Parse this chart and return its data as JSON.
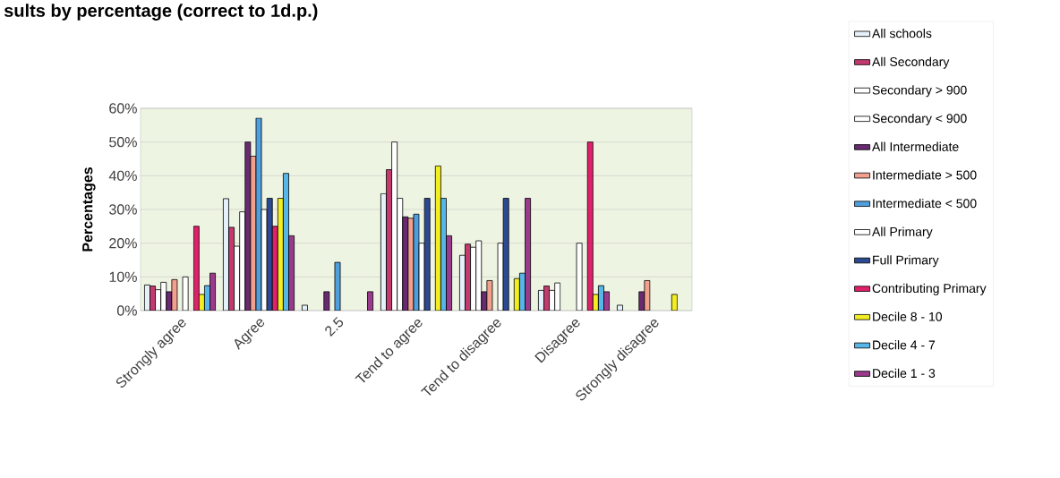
{
  "chart_data": {
    "type": "bar",
    "title": "sults by percentage (correct to 1d.p.)",
    "ylabel": "Percentages",
    "categories": [
      "Strongly agree",
      "Agree",
      "2.5",
      "Tend to agree",
      "Tend to disagree",
      "Disagree",
      "Strongly disagree"
    ],
    "ylim": [
      0,
      60
    ],
    "yticks": [
      {
        "value": 0,
        "label": "0%"
      },
      {
        "value": 10,
        "label": "10%"
      },
      {
        "value": 20,
        "label": "20%"
      },
      {
        "value": 30,
        "label": "30%"
      },
      {
        "value": 40,
        "label": "40%"
      },
      {
        "value": 50,
        "label": "50%"
      },
      {
        "value": 60,
        "label": "60%"
      }
    ],
    "grid": "y",
    "legend": "right",
    "series": [
      {
        "name": "All schools",
        "color": "#e4f0fa",
        "values": [
          7.6,
          33.2,
          1.6,
          34.7,
          16.4,
          6.0,
          1.6
        ]
      },
      {
        "name": "All Secondary",
        "color": "#c23a6e",
        "values": [
          7.3,
          24.7,
          0,
          41.8,
          19.7,
          7.3,
          0
        ]
      },
      {
        "name": "Secondary > 900",
        "color": "#ffffff",
        "values": [
          6.2,
          19.1,
          0,
          50.0,
          18.8,
          6.0,
          0
        ]
      },
      {
        "name": "Secondary < 900",
        "color": "#ffffff",
        "values": [
          8.4,
          29.3,
          0,
          33.3,
          20.7,
          8.2,
          0
        ]
      },
      {
        "name": "All Intermediate",
        "color": "#6a2a72",
        "values": [
          5.6,
          50.0,
          5.6,
          27.8,
          5.6,
          0,
          5.6
        ]
      },
      {
        "name": "Intermediate > 500",
        "color": "#f2a08e",
        "values": [
          9.2,
          45.8,
          0,
          27.4,
          8.9,
          0,
          8.9
        ]
      },
      {
        "name": "Intermediate < 500",
        "color": "#4f9fdc",
        "values": [
          0,
          57.1,
          14.3,
          28.6,
          0,
          0,
          0
        ]
      },
      {
        "name": "All Primary",
        "color": "#ffffff",
        "values": [
          10.0,
          30.0,
          0,
          20.0,
          20.0,
          20.0,
          0
        ]
      },
      {
        "name": "Full Primary",
        "color": "#2c4a92",
        "values": [
          0,
          33.3,
          0,
          33.3,
          33.3,
          0,
          0
        ]
      },
      {
        "name": "Contributing Primary",
        "color": "#e0206a",
        "values": [
          25.0,
          25.0,
          0,
          0,
          0,
          50.0,
          0
        ]
      },
      {
        "name": "Decile 8 - 10",
        "color": "#f2ee22",
        "values": [
          4.8,
          33.3,
          0,
          42.9,
          9.5,
          4.8,
          4.8
        ]
      },
      {
        "name": "Decile 4 - 7",
        "color": "#56b6e8",
        "values": [
          7.4,
          40.7,
          0,
          33.3,
          11.1,
          7.4,
          0
        ]
      },
      {
        "name": "Decile 1 - 3",
        "color": "#9a3a8c",
        "values": [
          11.1,
          22.2,
          5.6,
          22.2,
          33.3,
          5.6,
          0
        ]
      }
    ]
  }
}
